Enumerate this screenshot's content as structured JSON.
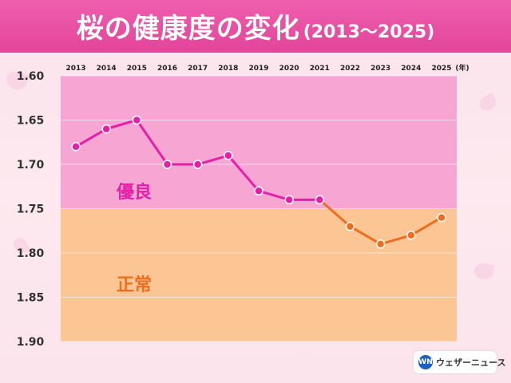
{
  "header": {
    "title": "桜の健康度の変化",
    "subtitle": "(2013〜2025)"
  },
  "chart_data": {
    "type": "line",
    "title": "桜の健康度の変化",
    "subtitle": "(2013〜2025)",
    "x_unit": "(年)",
    "categories": [
      "2013",
      "2014",
      "2015",
      "2016",
      "2017",
      "2018",
      "2019",
      "2020",
      "2021",
      "2022",
      "2023",
      "2024",
      "2025"
    ],
    "values": [
      1.68,
      1.66,
      1.65,
      1.7,
      1.7,
      1.69,
      1.73,
      1.74,
      1.74,
      1.77,
      1.79,
      1.78,
      1.76
    ],
    "y_ticks": [
      "1.60",
      "1.65",
      "1.70",
      "1.75",
      "1.80",
      "1.85",
      "1.90"
    ],
    "ylim": [
      1.6,
      1.9
    ],
    "y_inverted": true,
    "zones": [
      {
        "label": "優良",
        "from": 1.6,
        "to": 1.75,
        "color": "#f7a6d4",
        "line_color": "#e51fa8"
      },
      {
        "label": "正常",
        "from": 1.75,
        "to": 1.9,
        "color": "#fbc694",
        "line_color": "#ef6d1f"
      }
    ],
    "grid": true,
    "legend": "none"
  },
  "logo": {
    "mark": "WN",
    "name": "ウェザーニュース"
  }
}
